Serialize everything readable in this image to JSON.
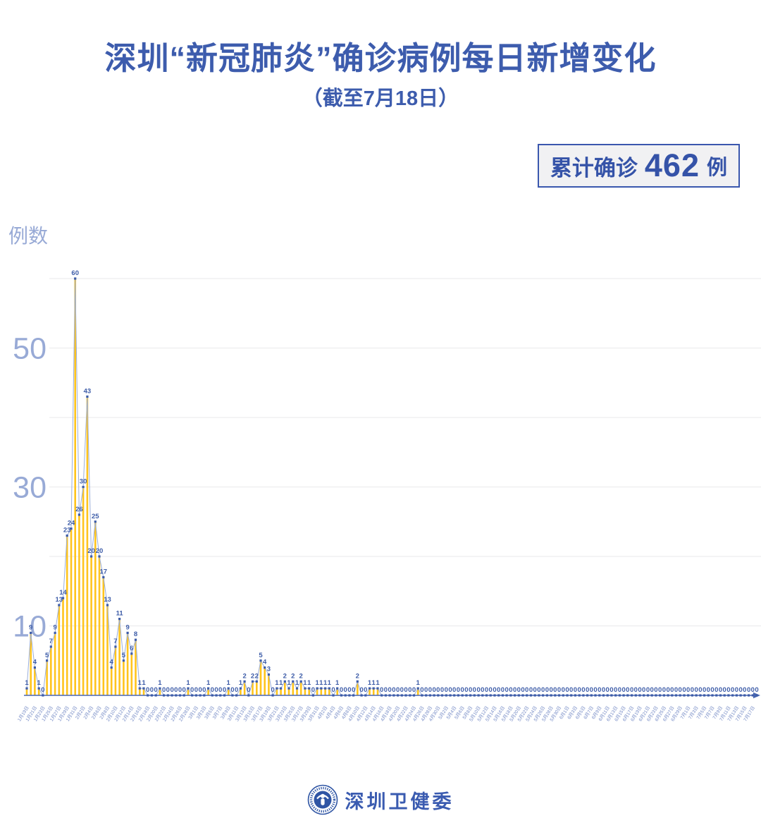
{
  "header": {
    "title": "深圳“新冠肺炎”确诊病例每日新增变化",
    "subtitle": "（截至7月18日）"
  },
  "summary_badge": {
    "label": "累计确诊",
    "value": "462",
    "unit": "例"
  },
  "footer": {
    "org_name": "深圳卫健委"
  },
  "chart_data": {
    "type": "bar+line",
    "title": "深圳“新冠肺炎”确诊病例每日新增变化",
    "subtitle": "（截至7月18日）",
    "annotation": "累计确诊 462 例",
    "ylabel": "例数",
    "xlabel": "",
    "ylim": [
      0,
      62
    ],
    "y_ticks_labeled": [
      10,
      30,
      50
    ],
    "y_gridlines": [
      10,
      20,
      30,
      40,
      50,
      60
    ],
    "x_start": "1月19日",
    "x_end": "7月18日",
    "legend": "none",
    "grid": "on",
    "values": [
      1,
      9,
      4,
      1,
      0,
      5,
      7,
      9,
      13,
      14,
      23,
      24,
      60,
      26,
      30,
      43,
      20,
      25,
      20,
      17,
      13,
      4,
      7,
      11,
      5,
      9,
      6,
      8,
      1,
      1,
      0,
      0,
      0,
      1,
      0,
      0,
      0,
      0,
      0,
      0,
      1,
      0,
      0,
      0,
      0,
      1,
      0,
      0,
      0,
      0,
      1,
      0,
      0,
      1,
      2,
      0,
      2,
      2,
      5,
      4,
      3,
      0,
      1,
      1,
      2,
      1,
      2,
      1,
      2,
      1,
      1,
      0,
      1,
      1,
      1,
      1,
      0,
      1,
      0,
      0,
      0,
      0,
      2,
      0,
      0,
      1,
      1,
      1,
      0,
      0,
      0,
      0,
      0,
      0,
      0,
      0,
      0,
      1,
      0,
      0,
      0,
      0,
      0,
      0,
      0,
      0,
      0,
      0,
      0,
      0,
      0,
      0,
      0,
      0,
      0,
      0,
      0,
      0,
      0,
      0,
      0,
      0,
      0,
      0,
      0,
      0,
      0,
      0,
      0,
      0,
      0,
      0,
      0,
      0,
      0,
      0,
      0,
      0,
      0,
      0,
      0,
      0,
      0,
      0,
      0,
      0,
      0,
      0,
      0,
      0,
      0,
      0,
      0,
      0,
      0,
      0,
      0,
      0,
      0,
      0,
      0,
      0,
      0,
      0,
      0,
      0,
      0,
      0,
      0,
      0,
      0,
      0,
      0,
      0,
      0,
      0,
      0,
      0,
      0,
      0,
      0,
      0
    ],
    "x_tick_labels": [
      "1月19日",
      "1月21日",
      "1月23日",
      "1月25日",
      "1月27日",
      "1月29日",
      "1月31日",
      "2月2日",
      "2月4日",
      "2月6日",
      "2月8日",
      "2月10日",
      "2月12日",
      "2月14日",
      "2月16日",
      "2月18日",
      "2月20日",
      "2月22日",
      "2月24日",
      "2月26日",
      "2月28日",
      "3月1日",
      "3月3日",
      "3月5日",
      "3月7日",
      "3月9日",
      "3月11日",
      "3月13日",
      "3月15日",
      "3月17日",
      "3月19日",
      "3月21日",
      "3月23日",
      "3月25日",
      "3月27日",
      "3月29日",
      "3月31日",
      "4月2日",
      "4月4日",
      "4月6日",
      "4月8日",
      "4月10日",
      "4月12日",
      "4月14日",
      "4月16日",
      "4月18日",
      "4月20日",
      "4月22日",
      "4月24日",
      "4月26日",
      "4月28日",
      "4月30日",
      "5月2日",
      "5月4日",
      "5月6日",
      "5月8日",
      "5月10日",
      "5月12日",
      "5月14日",
      "5月16日",
      "5月18日",
      "5月20日",
      "5月22日",
      "5月24日",
      "5月26日",
      "5月28日",
      "5月30日",
      "6月1日",
      "6月3日",
      "6月5日",
      "6月7日",
      "6月9日",
      "6月11日",
      "6月13日",
      "6月15日",
      "6月17日",
      "6月19日",
      "6月21日",
      "6月23日",
      "6月25日",
      "6月27日",
      "6月29日",
      "7月1日",
      "7月3日",
      "7月5日",
      "7月7日",
      "7月9日",
      "7月11日",
      "7月13日",
      "7月15日",
      "7月17日"
    ],
    "colors": {
      "bar": "#FFC41D",
      "line": "#9AAED9",
      "point": "#3D5CA8",
      "value_label": "#3D5CA8",
      "axis": "#4866B2",
      "grid": "#E9E9EB",
      "axis_text": "#98AAD6",
      "x_tick_text": "#7389C5",
      "title": "#3D5CAD"
    }
  }
}
